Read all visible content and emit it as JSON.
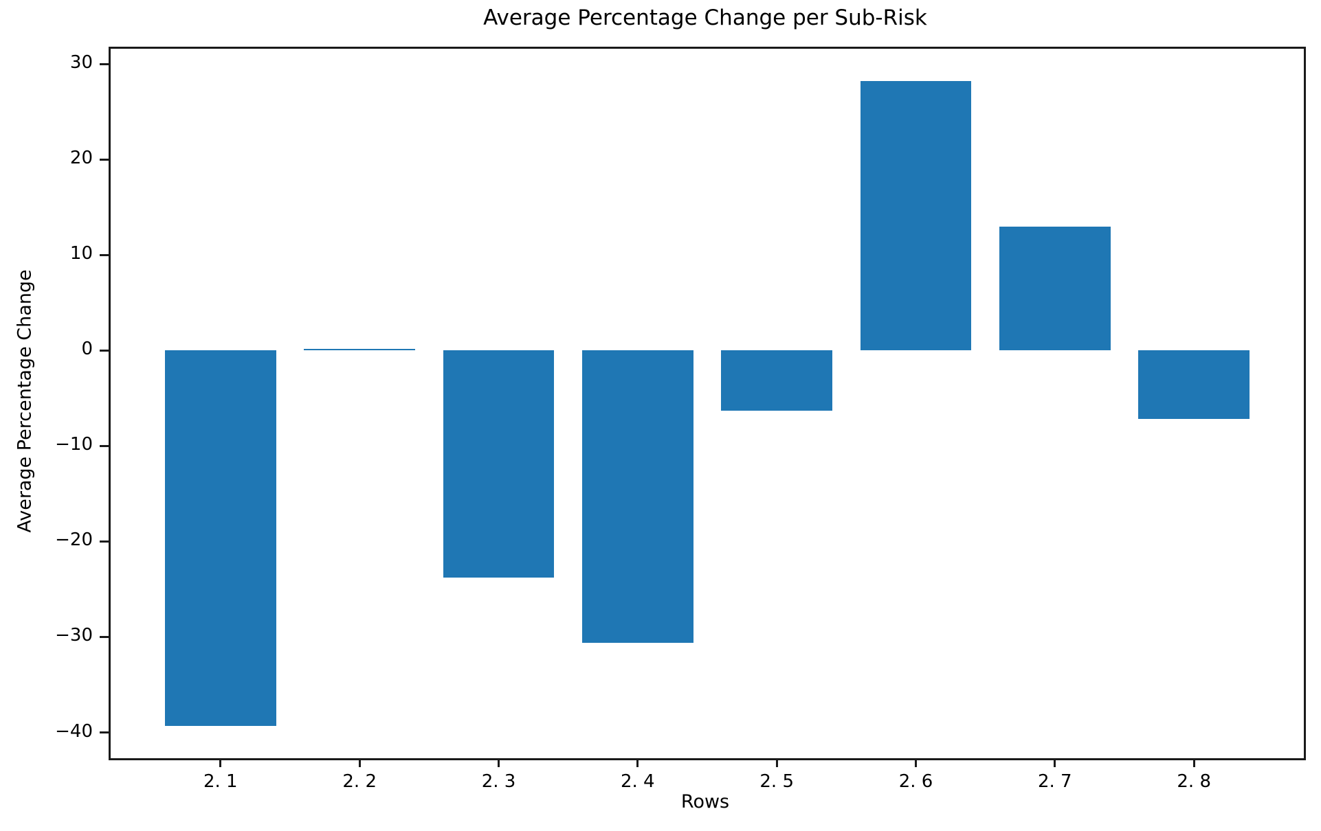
{
  "figure": {
    "background": "#ffffff",
    "text_color": "#000000",
    "spine_color": "#1a1a1a"
  },
  "chart_data": {
    "type": "bar",
    "title": "Average Percentage Change per Sub-Risk",
    "xlabel": "Rows",
    "ylabel": "Average Percentage Change",
    "categories": [
      "2. 1",
      "2. 2",
      "2. 3",
      "2. 4",
      "2. 5",
      "2. 6",
      "2. 7",
      "2. 8"
    ],
    "values": [
      -39.3,
      0.15,
      -23.8,
      -30.6,
      -6.3,
      28.2,
      13.0,
      -7.2
    ],
    "bar_color": "#1f77b4",
    "bar_width": 0.8,
    "ylim": [
      -42.7,
      31.6
    ],
    "xlim": [
      -0.79,
      7.79
    ],
    "yticks": [
      30,
      20,
      10,
      0,
      -10,
      -20,
      -30,
      -40
    ],
    "ytick_labels": [
      "30",
      "20",
      "10",
      "0",
      "−10",
      "−20",
      "−30",
      "−40"
    ],
    "grid": false,
    "legend": null
  }
}
